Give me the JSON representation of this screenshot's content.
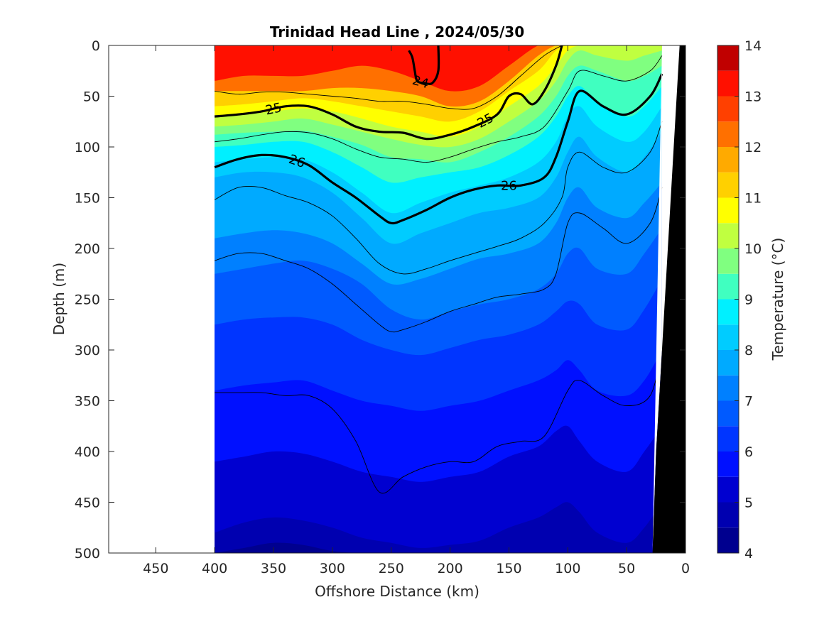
{
  "chart_data": {
    "type": "contour",
    "title": "Trinidad Head Line , 2024/05/30",
    "xlabel": "Offshore Distance (km)",
    "ylabel": "Depth (m)",
    "xlim": [
      490,
      0
    ],
    "ylim": [
      0,
      500
    ],
    "x_reversed": true,
    "y_reversed": true,
    "x_ticks": [
      450,
      400,
      350,
      300,
      250,
      200,
      150,
      100,
      50,
      0
    ],
    "y_ticks": [
      0,
      50,
      100,
      150,
      200,
      250,
      300,
      350,
      400,
      450,
      500
    ],
    "data_extent_km": [
      400,
      20
    ],
    "colorbar": {
      "label": "Temperature (°C)",
      "range": [
        4,
        14
      ],
      "ticks": [
        4,
        5,
        6,
        7,
        8,
        9,
        10,
        11,
        12,
        13,
        14
      ],
      "colormap": "jet",
      "levels": [
        {
          "t": 4.0,
          "color": "#00008f"
        },
        {
          "t": 4.5,
          "color": "#0000b0"
        },
        {
          "t": 5.0,
          "color": "#0000d0"
        },
        {
          "t": 5.5,
          "color": "#0010ff"
        },
        {
          "t": 6.0,
          "color": "#0035ff"
        },
        {
          "t": 6.5,
          "color": "#005aff"
        },
        {
          "t": 7.0,
          "color": "#0080ff"
        },
        {
          "t": 7.5,
          "color": "#00aaff"
        },
        {
          "t": 8.0,
          "color": "#00ccff"
        },
        {
          "t": 8.5,
          "color": "#00f0ff"
        },
        {
          "t": 9.0,
          "color": "#40ffc0"
        },
        {
          "t": 9.5,
          "color": "#80ff80"
        },
        {
          "t": 10.0,
          "color": "#c0ff40"
        },
        {
          "t": 10.5,
          "color": "#ffff00"
        },
        {
          "t": 11.0,
          "color": "#ffd000"
        },
        {
          "t": 11.5,
          "color": "#ffaa00"
        },
        {
          "t": 12.0,
          "color": "#ff7000"
        },
        {
          "t": 12.5,
          "color": "#ff4000"
        },
        {
          "t": 13.0,
          "color": "#ff1000"
        },
        {
          "t": 13.5,
          "color": "#c00000"
        }
      ]
    },
    "temperature_isotherm_depths": {
      "x_km": [
        400,
        375,
        350,
        325,
        300,
        275,
        250,
        225,
        200,
        175,
        150,
        125,
        110,
        100,
        90,
        75,
        50,
        35,
        20
      ],
      "isotherms": [
        {
          "t": 13.0,
          "depth": [
            35,
            30,
            30,
            30,
            25,
            20,
            25,
            35,
            45,
            40,
            20,
            0,
            0,
            0,
            0,
            0,
            0,
            0,
            0
          ]
        },
        {
          "t": 12.0,
          "depth": [
            45,
            45,
            45,
            45,
            42,
            42,
            45,
            50,
            60,
            55,
            35,
            10,
            0,
            0,
            0,
            0,
            0,
            0,
            0
          ]
        },
        {
          "t": 11.0,
          "depth": [
            60,
            58,
            55,
            52,
            55,
            60,
            65,
            70,
            75,
            65,
            45,
            25,
            5,
            0,
            0,
            0,
            0,
            0,
            0
          ]
        },
        {
          "t": 10.5,
          "depth": [
            70,
            68,
            65,
            62,
            65,
            72,
            80,
            85,
            90,
            80,
            60,
            40,
            20,
            5,
            0,
            0,
            0,
            0,
            0
          ]
        },
        {
          "t": 10.0,
          "depth": [
            80,
            78,
            75,
            72,
            78,
            85,
            92,
            98,
            100,
            92,
            75,
            55,
            35,
            15,
            5,
            10,
            15,
            10,
            5
          ]
        },
        {
          "t": 9.5,
          "depth": [
            88,
            86,
            85,
            84,
            90,
            98,
            110,
            112,
            115,
            105,
            90,
            70,
            50,
            30,
            20,
            25,
            35,
            30,
            20
          ]
        },
        {
          "t": 9.0,
          "depth": [
            100,
            98,
            95,
            95,
            105,
            120,
            135,
            130,
            125,
            120,
            108,
            90,
            70,
            50,
            40,
            55,
            70,
            60,
            40
          ]
        },
        {
          "t": 8.5,
          "depth": [
            115,
            112,
            110,
            112,
            125,
            145,
            165,
            155,
            145,
            138,
            130,
            115,
            95,
            70,
            60,
            80,
            95,
            85,
            60
          ]
        },
        {
          "t": 8.0,
          "depth": [
            130,
            125,
            125,
            130,
            145,
            170,
            195,
            185,
            175,
            165,
            160,
            150,
            130,
            105,
            90,
            110,
            125,
            110,
            85
          ]
        },
        {
          "t": 7.5,
          "depth": [
            190,
            185,
            182,
            185,
            195,
            215,
            235,
            230,
            220,
            210,
            205,
            195,
            175,
            150,
            140,
            160,
            170,
            155,
            135
          ]
        },
        {
          "t": 7.0,
          "depth": [
            225,
            220,
            215,
            212,
            220,
            235,
            260,
            270,
            262,
            255,
            250,
            240,
            225,
            205,
            200,
            220,
            225,
            205,
            180
          ]
        },
        {
          "t": 6.5,
          "depth": [
            275,
            270,
            268,
            268,
            275,
            290,
            300,
            305,
            298,
            290,
            285,
            275,
            262,
            252,
            255,
            275,
            280,
            260,
            230
          ]
        },
        {
          "t": 6.0,
          "depth": [
            340,
            335,
            332,
            330,
            340,
            350,
            355,
            360,
            355,
            350,
            340,
            330,
            320,
            310,
            320,
            340,
            345,
            330,
            300
          ]
        },
        {
          "t": 5.5,
          "depth": [
            410,
            405,
            400,
            402,
            410,
            420,
            425,
            430,
            425,
            420,
            405,
            395,
            380,
            375,
            390,
            410,
            420,
            400,
            375
          ]
        },
        {
          "t": 5.0,
          "depth": [
            480,
            470,
            465,
            468,
            475,
            485,
            490,
            495,
            492,
            488,
            475,
            465,
            455,
            450,
            460,
            480,
            490,
            475,
            450
          ]
        },
        {
          "t": 4.5,
          "depth": [
            500,
            495,
            490,
            492,
            498,
            500,
            500,
            500,
            500,
            500,
            500,
            500,
            500,
            500,
            500,
            500,
            500,
            500,
            500
          ]
        }
      ]
    },
    "density_contours": {
      "labeled": [
        {
          "label": "24",
          "x_km": [
            235,
            232,
            230,
            228,
            222,
            215,
            210,
            210
          ],
          "depth_m": [
            5,
            12,
            25,
            35,
            37,
            37,
            25,
            0
          ]
        },
        {
          "label": "25",
          "x_km": [
            400,
            380,
            360,
            340,
            320,
            300,
            280,
            260,
            240,
            220,
            200,
            180,
            160,
            150,
            140,
            130,
            120,
            110,
            105
          ],
          "depth_m": [
            70,
            68,
            65,
            60,
            60,
            68,
            80,
            85,
            86,
            92,
            88,
            80,
            68,
            50,
            48,
            58,
            45,
            20,
            0
          ]
        },
        {
          "label": "26",
          "x_km": [
            400,
            380,
            360,
            340,
            320,
            300,
            280,
            260,
            250,
            240,
            220,
            200,
            180,
            160,
            140,
            120,
            110,
            100,
            90,
            70,
            50,
            30,
            20
          ],
          "depth_m": [
            120,
            112,
            108,
            110,
            118,
            135,
            150,
            168,
            175,
            172,
            162,
            150,
            142,
            138,
            138,
            130,
            110,
            75,
            45,
            60,
            68,
            50,
            28
          ]
        }
      ],
      "unlabeled": [
        {
          "x_km": [
            400,
            380,
            360,
            340,
            320,
            300,
            280,
            260,
            240,
            220,
            200,
            180,
            160,
            140,
            120,
            105
          ],
          "depth_m": [
            45,
            48,
            46,
            46,
            48,
            50,
            52,
            55,
            55,
            58,
            62,
            62,
            50,
            30,
            10,
            0
          ]
        },
        {
          "x_km": [
            400,
            380,
            360,
            340,
            320,
            300,
            280,
            260,
            240,
            220,
            200,
            180,
            160,
            140,
            120,
            100,
            90,
            70,
            50,
            30,
            20
          ],
          "depth_m": [
            95,
            92,
            88,
            85,
            86,
            92,
            102,
            110,
            112,
            115,
            110,
            102,
            95,
            90,
            80,
            45,
            25,
            30,
            35,
            25,
            10
          ]
        },
        {
          "x_km": [
            400,
            380,
            360,
            340,
            320,
            300,
            280,
            260,
            240,
            220,
            200,
            180,
            160,
            140,
            120,
            105,
            100,
            90,
            70,
            50,
            30,
            20
          ],
          "depth_m": [
            152,
            140,
            140,
            148,
            155,
            168,
            190,
            215,
            225,
            220,
            212,
            205,
            198,
            190,
            175,
            150,
            120,
            105,
            120,
            125,
            105,
            75
          ]
        },
        {
          "x_km": [
            400,
            380,
            360,
            340,
            320,
            300,
            280,
            260,
            250,
            240,
            220,
            200,
            180,
            160,
            140,
            120,
            110,
            100,
            90,
            70,
            50,
            30,
            20
          ],
          "depth_m": [
            212,
            205,
            205,
            212,
            220,
            235,
            255,
            275,
            282,
            280,
            272,
            262,
            255,
            248,
            245,
            240,
            225,
            175,
            165,
            180,
            195,
            175,
            140
          ]
        },
        {
          "x_km": [
            400,
            380,
            360,
            340,
            320,
            300,
            280,
            260,
            240,
            220,
            200,
            180,
            160,
            140,
            120,
            100,
            90,
            70,
            50,
            30,
            20
          ],
          "depth_m": [
            342,
            342,
            342,
            345,
            345,
            358,
            390,
            440,
            425,
            415,
            410,
            410,
            395,
            390,
            385,
            340,
            330,
            345,
            355,
            345,
            300
          ]
        }
      ]
    },
    "bathymetry": {
      "x_km": [
        28,
        25,
        20,
        15,
        10,
        5,
        0
      ],
      "depth_m": [
        500,
        400,
        300,
        200,
        100,
        0,
        0
      ]
    }
  }
}
